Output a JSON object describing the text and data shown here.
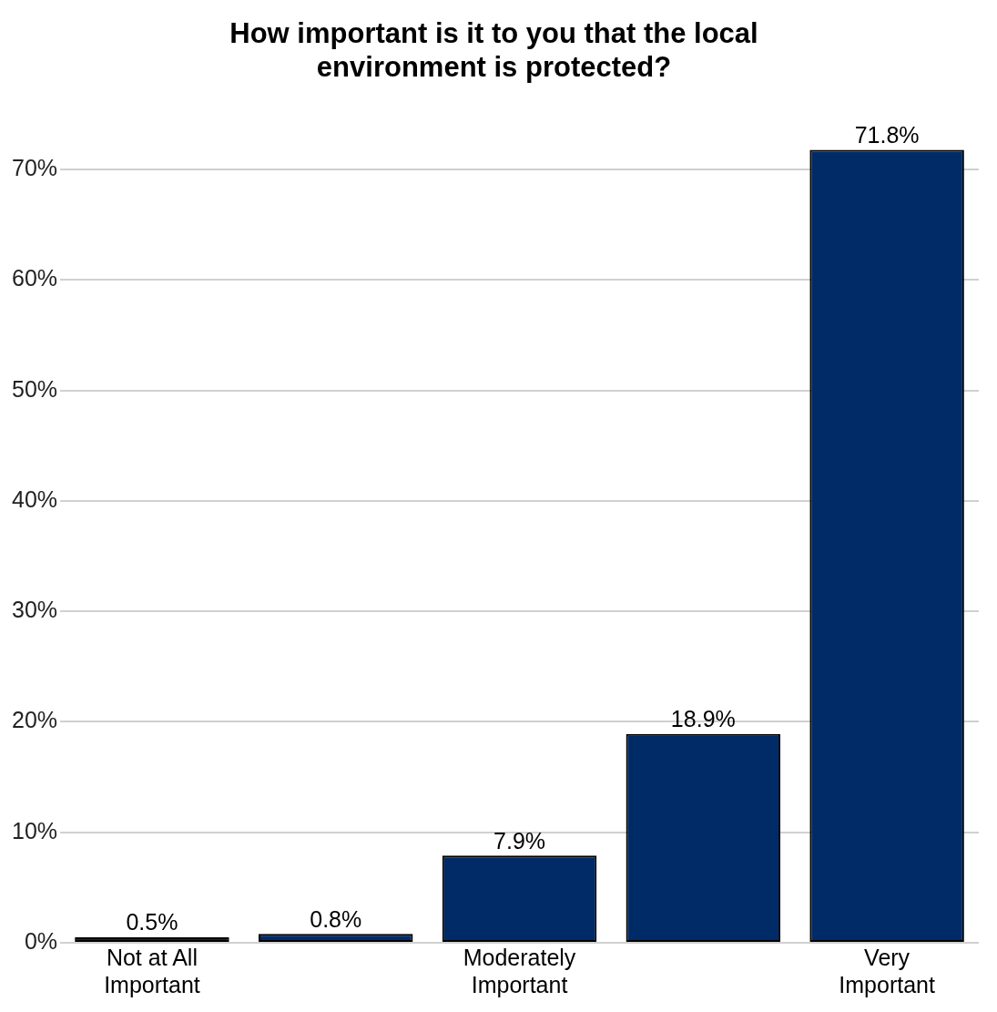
{
  "chart_data": {
    "type": "bar",
    "title": "How important is it to you that the local environment is protected?",
    "categories": [
      "Not at All Important",
      null,
      "Moderately Important",
      null,
      "Very Important"
    ],
    "values": [
      0.5,
      0.8,
      7.9,
      18.9,
      71.8
    ],
    "color": "#002b66",
    "value_labels": [
      "0.5%",
      "0.8%",
      "7.9%",
      "18.9%",
      "71.8%"
    ],
    "ylim": [
      0,
      71.8
    ],
    "yticks": [
      {
        "value": 0,
        "label": "0%"
      },
      {
        "value": 10,
        "label": "10%"
      },
      {
        "value": 20,
        "label": "20%"
      },
      {
        "value": 30,
        "label": "30%"
      },
      {
        "value": 40,
        "label": "40%"
      },
      {
        "value": 50,
        "label": "50%"
      },
      {
        "value": 60,
        "label": "60%"
      },
      {
        "value": 70,
        "label": "70%"
      }
    ],
    "grid": "y",
    "legend": false
  }
}
